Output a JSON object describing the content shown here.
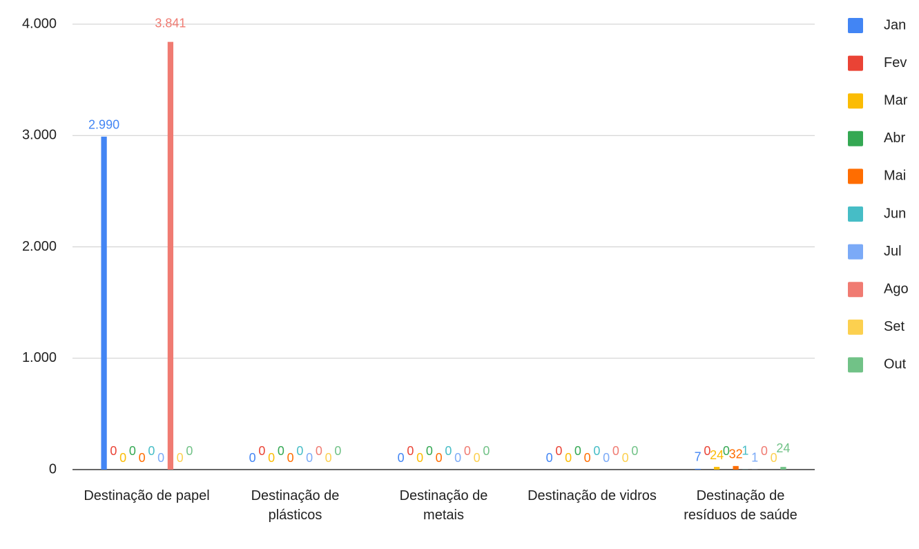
{
  "chart_data": {
    "type": "bar",
    "categories": [
      "Destinação de papel",
      "Destinação de plásticos",
      "Destinação de metais",
      "Destinação de vidros",
      "Destinação de resíduos de saúde"
    ],
    "series": [
      {
        "name": "Jan",
        "color": "#4285f4",
        "values": [
          2990,
          0,
          0,
          0,
          7
        ],
        "value_labels": [
          "2.990",
          "0",
          "0",
          "0",
          "7"
        ]
      },
      {
        "name": "Fev",
        "color": "#ea4335",
        "values": [
          0,
          0,
          0,
          0,
          0
        ]
      },
      {
        "name": "Mar",
        "color": "#fbbc04",
        "values": [
          0,
          0,
          0,
          0,
          24
        ]
      },
      {
        "name": "Abr",
        "color": "#34a853",
        "values": [
          0,
          0,
          0,
          0,
          0
        ]
      },
      {
        "name": "Mai",
        "color": "#ff6d01",
        "values": [
          0,
          0,
          0,
          0,
          32
        ]
      },
      {
        "name": "Jun",
        "color": "#46bdc6",
        "values": [
          0,
          0,
          0,
          0,
          1
        ]
      },
      {
        "name": "Jul",
        "color": "#7baaf7",
        "values": [
          0,
          0,
          0,
          0,
          1
        ]
      },
      {
        "name": "Ago",
        "color": "#f07b72",
        "values": [
          3841,
          0,
          0,
          0,
          0
        ],
        "value_labels": [
          "3.841",
          "0",
          "0",
          "0",
          "0"
        ]
      },
      {
        "name": "Set",
        "color": "#fcd04f",
        "values": [
          0,
          0,
          0,
          0,
          0
        ]
      },
      {
        "name": "Out",
        "color": "#71c287",
        "values": [
          0,
          0,
          0,
          0,
          24
        ]
      }
    ],
    "ylim": [
      0,
      4000
    ],
    "yticks": [
      0,
      {
        "value": 1000,
        "label": "1.000"
      },
      {
        "value": 2000,
        "label": "2.000"
      },
      {
        "value": 3000,
        "label": "3.000"
      },
      {
        "value": 4000,
        "label": "4.000"
      }
    ],
    "grid": true,
    "legend": "right"
  }
}
